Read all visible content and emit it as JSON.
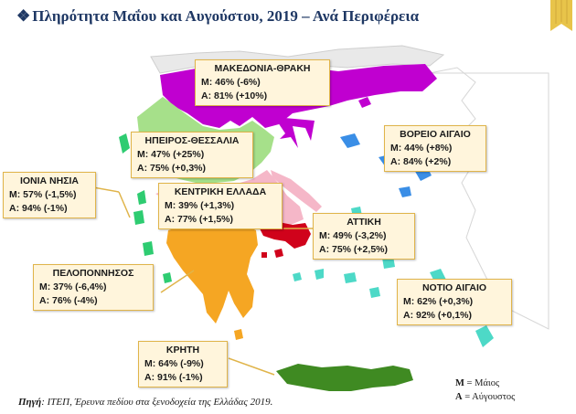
{
  "title": "Πληρότητα Μαΐου και Αυγούστου, 2019 – Ανά Περιφέρεια",
  "title_bullet": "❖",
  "regions": [
    {
      "name": "ΜΑΚΕΔΟΝΙΑ-ΘΡΑΚΗ",
      "m": "Μ:  46%   (-6%)",
      "a": "Α:  81%   (+10%)",
      "color": "#c000d0"
    },
    {
      "name": "ΗΠΕΙΡΟΣ-ΘΕΣΣΑΛΙΑ",
      "m": "Μ: 47%  (+25%)",
      "a": "Α:  75%  (+0,3%)",
      "color": "#a6e08a"
    },
    {
      "name": "ΙΟΝΙΑ ΝΗΣΙΑ",
      "m": "Μ: 57%  (-1,5%)",
      "a": "Α:  94%   (-1%)",
      "color": "#2ecc71"
    },
    {
      "name": "ΚΕΝΤΡΙΚΗ ΕΛΛΑΔΑ",
      "m": "Μ: 39%   (+1,3%)",
      "a": "Α:  77%  (+1,5%)",
      "color": "#f5b7c8"
    },
    {
      "name": "ΑΤΤΙΚΗ",
      "m": "Μ: 49%  (-3,2%)",
      "a": "Α:  75% (+2,5%)",
      "color": "#d0021b"
    },
    {
      "name": "ΒΟΡΕΙΟ ΑΙΓΑΙΟ",
      "m": "Μ:  44%   (+8%)",
      "a": "Α:   84%   (+2%)",
      "color": "#3a8ee6"
    },
    {
      "name": "ΠΕΛΟΠΟΝΝΗΣΟΣ",
      "m": "Μ: 37%  (-6,4%)",
      "a": "Α:  76%   (-4%)",
      "color": "#f5a623"
    },
    {
      "name": "ΝΟΤΙΟ ΑΙΓΑΙΟ",
      "m": "Μ:  62%   (+0,3%)",
      "a": "Α:   92%   (+0,1%)",
      "color": "#4dd9c7"
    },
    {
      "name": "ΚΡΗΤΗ",
      "m": "Μ:  64%   (-9%)",
      "a": "Α:  91%   (-1%)",
      "color": "#3f8a22"
    }
  ],
  "legend": {
    "m_key": "Μ",
    "m_label": " = Μάιος",
    "a_key": "Α",
    "a_label": "  =  Αύγουστος"
  },
  "source": {
    "label": "Πηγή",
    "text": ": ΙΤΕΠ, Έρευνα πεδίου στα ξενοδοχεία της Ελλάδας 2019."
  }
}
